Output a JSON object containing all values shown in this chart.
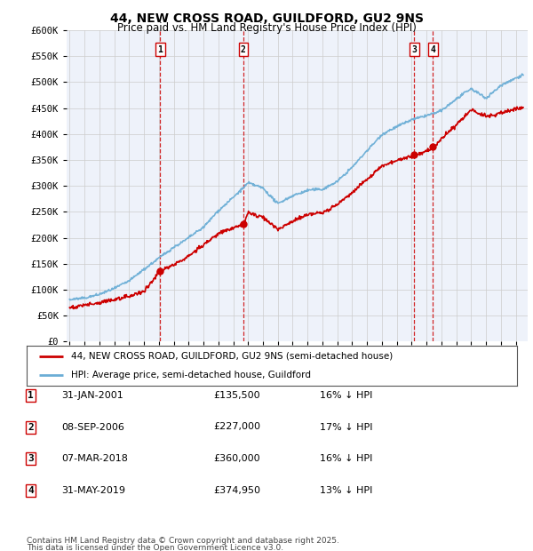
{
  "title": "44, NEW CROSS ROAD, GUILDFORD, GU2 9NS",
  "subtitle": "Price paid vs. HM Land Registry's House Price Index (HPI)",
  "legend_line1": "44, NEW CROSS ROAD, GUILDFORD, GU2 9NS (semi-detached house)",
  "legend_line2": "HPI: Average price, semi-detached house, Guildford",
  "footer_line1": "Contains HM Land Registry data © Crown copyright and database right 2025.",
  "footer_line2": "This data is licensed under the Open Government Licence v3.0.",
  "transactions": [
    {
      "num": 1,
      "date": "31-JAN-2001",
      "price": "£135,500",
      "hpi": "16% ↓ HPI"
    },
    {
      "num": 2,
      "date": "08-SEP-2006",
      "price": "£227,000",
      "hpi": "17% ↓ HPI"
    },
    {
      "num": 3,
      "date": "07-MAR-2018",
      "price": "£360,000",
      "hpi": "16% ↓ HPI"
    },
    {
      "num": 4,
      "date": "31-MAY-2019",
      "price": "£374,950",
      "hpi": "13% ↓ HPI"
    }
  ],
  "transaction_dates_decimal": [
    2001.08,
    2006.68,
    2018.18,
    2019.42
  ],
  "transaction_prices": [
    135500,
    227000,
    360000,
    374950
  ],
  "hpi_color": "#6baed6",
  "price_color": "#cc0000",
  "vline_color": "#cc0000",
  "grid_color": "#cccccc",
  "background_color": "#ffffff",
  "plot_bg_color": "#eef2fa",
  "ylim": [
    0,
    600000
  ],
  "yticks": [
    0,
    50000,
    100000,
    150000,
    200000,
    250000,
    300000,
    350000,
    400000,
    450000,
    500000,
    550000,
    600000
  ],
  "xlim_start": 1994.8,
  "xlim_end": 2025.8,
  "hpi_anchors_x": [
    1995,
    1996,
    1997,
    1998,
    1999,
    2000,
    2001,
    2002,
    2003,
    2004,
    2005,
    2006,
    2007,
    2008,
    2009,
    2010,
    2011,
    2012,
    2013,
    2014,
    2015,
    2016,
    2017,
    2018,
    2019,
    2020,
    2021,
    2022,
    2023,
    2024,
    2025.5
  ],
  "hpi_anchors_y": [
    80000,
    84000,
    92000,
    103000,
    118000,
    140000,
    162000,
    182000,
    200000,
    220000,
    252000,
    278000,
    305000,
    295000,
    265000,
    280000,
    290000,
    292000,
    308000,
    335000,
    368000,
    400000,
    415000,
    428000,
    435000,
    445000,
    468000,
    488000,
    470000,
    495000,
    515000
  ],
  "price_anchors_x": [
    1995,
    1996,
    1997,
    1998,
    1999,
    2000,
    2001.08,
    2002,
    2003,
    2004,
    2005,
    2006.68,
    2007,
    2008,
    2009,
    2010,
    2011,
    2012,
    2013,
    2014,
    2015,
    2016,
    2017,
    2018.18,
    2019.42,
    2020,
    2021,
    2022,
    2023,
    2024,
    2025.5
  ],
  "price_anchors_y": [
    63000,
    67000,
    72000,
    78000,
    85000,
    95000,
    135500,
    148000,
    165000,
    188000,
    210000,
    227000,
    248000,
    238000,
    215000,
    232000,
    243000,
    248000,
    265000,
    288000,
    315000,
    342000,
    352000,
    360000,
    374950,
    393000,
    418000,
    448000,
    435000,
    440000,
    450000
  ]
}
